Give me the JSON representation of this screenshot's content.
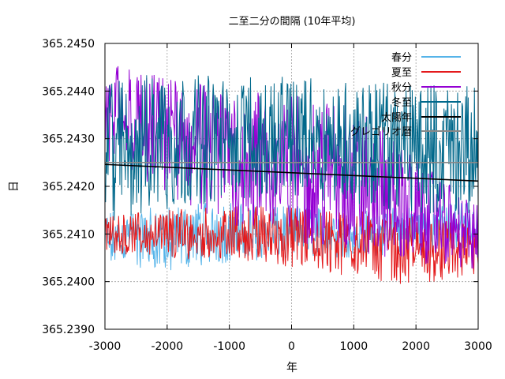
{
  "chart_data": {
    "type": "line",
    "title": "二至二分の間隔 (10年平均)",
    "xlabel": "年",
    "ylabel": "日",
    "xlim": [
      -3000,
      3000
    ],
    "ylim": [
      365.239,
      365.245
    ],
    "x_ticks": [
      -3000,
      -2000,
      -1000,
      0,
      1000,
      2000,
      3000
    ],
    "x_tick_labels": [
      "-3000",
      "-2000",
      "-1000",
      "0",
      "1000",
      "2000",
      "3000"
    ],
    "y_ticks": [
      365.239,
      365.24,
      365.241,
      365.242,
      365.243,
      365.244,
      365.245
    ],
    "y_tick_labels": [
      "365.2390",
      "365.2400",
      "365.2410",
      "365.2420",
      "365.2430",
      "365.2440",
      "365.2450"
    ],
    "grid": true,
    "legend_position": "top-right",
    "series": [
      {
        "name": "春分",
        "color": "#56b4e9",
        "band_x": [
          -3000,
          -2000,
          -1000,
          0,
          1000,
          2000,
          3000
        ],
        "band_low": [
          365.2404,
          365.2402,
          365.2404,
          365.2405,
          365.2405,
          365.2406,
          365.2407
        ],
        "band_high": [
          365.2415,
          365.2416,
          365.2417,
          365.2416,
          365.2415,
          365.2416,
          365.2417
        ]
      },
      {
        "name": "夏至",
        "color": "#e41a1c",
        "band_x": [
          -3000,
          -2000,
          -1000,
          0,
          1000,
          2000,
          3000
        ],
        "band_low": [
          365.2406,
          365.2405,
          365.2404,
          365.2403,
          365.2401,
          365.2399,
          365.2401
        ],
        "band_high": [
          365.2414,
          365.2415,
          365.2416,
          365.2416,
          365.2415,
          365.2414,
          365.2412
        ]
      },
      {
        "name": "秋分",
        "color": "#9400d3",
        "band_x": [
          -3000,
          -2000,
          -1000,
          0,
          1000,
          2000,
          3000
        ],
        "band_low": [
          365.2425,
          365.2418,
          365.2412,
          365.2408,
          365.2405,
          365.2404,
          365.2402
        ],
        "band_high": [
          365.2446,
          365.2443,
          365.2441,
          365.244,
          365.2438,
          365.2426,
          365.2416
        ]
      },
      {
        "name": "冬至",
        "color": "#00688b",
        "band_x": [
          -3000,
          -2000,
          -1000,
          0,
          1000,
          2000,
          3000
        ],
        "band_low": [
          365.2412,
          365.2415,
          365.2417,
          365.2418,
          365.2416,
          365.2414,
          365.2414
        ],
        "band_high": [
          365.2443,
          365.2444,
          365.2443,
          365.2443,
          365.2442,
          365.2442,
          365.2441
        ]
      },
      {
        "name": "太陽年",
        "color": "#000000",
        "x": [
          -3000,
          3000
        ],
        "y": [
          365.24246,
          365.24211
        ]
      },
      {
        "name": "グレゴリオ暦",
        "color": "#888888",
        "x": [
          -3000,
          3000
        ],
        "y": [
          365.2425,
          365.2425
        ]
      }
    ]
  }
}
